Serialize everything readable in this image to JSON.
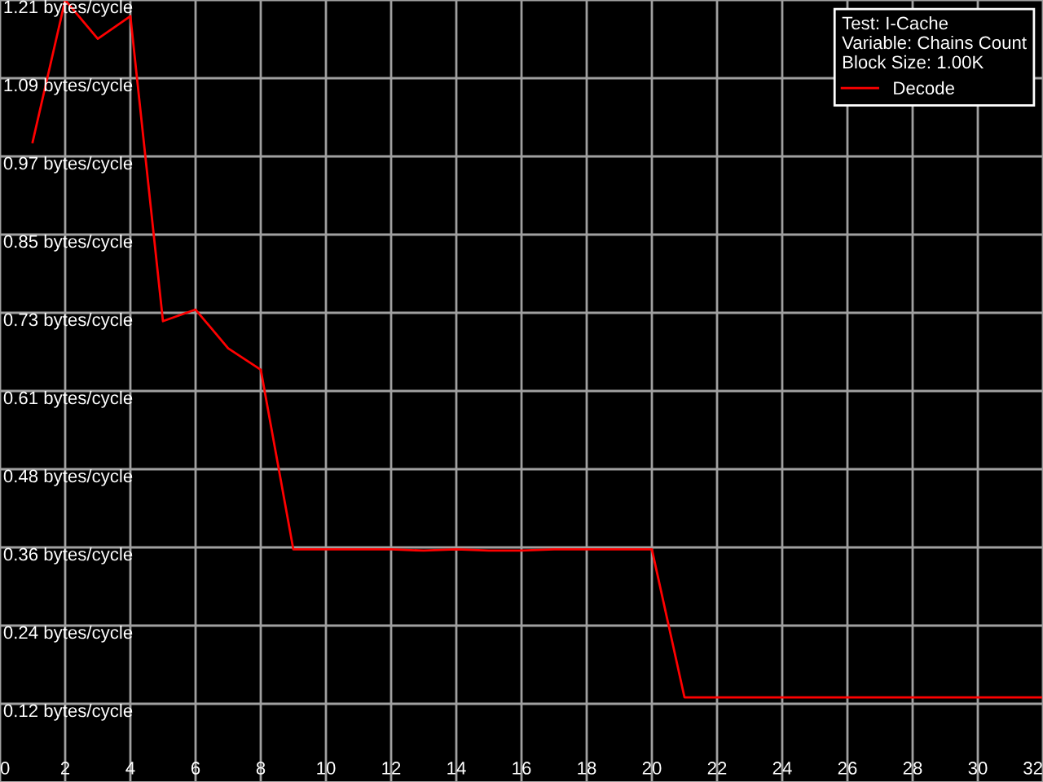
{
  "chart_data": {
    "type": "line",
    "legend_title": "Test: I-Cache\nVariable: Chains Count\nBlock Size: 1.00K",
    "legend": "top right",
    "grid": true,
    "marker": "none",
    "line_style": "solid",
    "xlim": [
      0,
      32
    ],
    "xticks": [
      0,
      2,
      4,
      6,
      8,
      10,
      12,
      14,
      16,
      18,
      20,
      22,
      24,
      26,
      28,
      30,
      32
    ],
    "ylim": [
      0,
      1.21
    ],
    "yticks": [
      {
        "value": 0.121,
        "label": "0.12 bytes/cycle"
      },
      {
        "value": 0.242,
        "label": "0.24 bytes/cycle"
      },
      {
        "value": 0.363,
        "label": "0.36 bytes/cycle"
      },
      {
        "value": 0.484,
        "label": "0.48 bytes/cycle"
      },
      {
        "value": 0.605,
        "label": "0.61 bytes/cycle"
      },
      {
        "value": 0.726,
        "label": "0.73 bytes/cycle"
      },
      {
        "value": 0.847,
        "label": "0.85 bytes/cycle"
      },
      {
        "value": 0.968,
        "label": "0.97 bytes/cycle"
      },
      {
        "value": 1.089,
        "label": "1.09 bytes/cycle"
      },
      {
        "value": 1.21,
        "label": "1.21 bytes/cycle"
      }
    ],
    "x": [
      1,
      2,
      3,
      4,
      5,
      6,
      7,
      8,
      9,
      10,
      11,
      12,
      13,
      14,
      15,
      16,
      17,
      18,
      19,
      20,
      21,
      22,
      23,
      24,
      25,
      26,
      27,
      28,
      29,
      30,
      31,
      32
    ],
    "series": [
      {
        "name": "Decode",
        "color": "#ff0000",
        "values": [
          0.99,
          1.21,
          1.15,
          1.185,
          0.713,
          0.731,
          0.671,
          0.638,
          0.36,
          0.36,
          0.36,
          0.36,
          0.358,
          0.36,
          0.358,
          0.358,
          0.36,
          0.36,
          0.36,
          0.36,
          0.131,
          0.131,
          0.131,
          0.131,
          0.131,
          0.131,
          0.131,
          0.131,
          0.131,
          0.131,
          0.131,
          0.131
        ]
      }
    ]
  }
}
